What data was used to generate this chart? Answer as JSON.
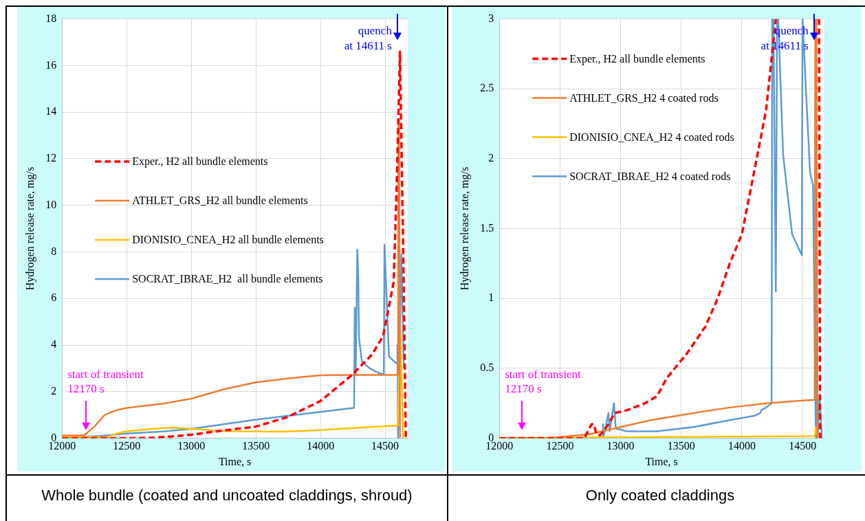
{
  "chart_data": [
    {
      "type": "line",
      "xlabel": "Time, s",
      "ylabel": "Hydrogen release rate, mg/s",
      "xlim": [
        12000,
        14675
      ],
      "xticks": [
        12000,
        12500,
        13000,
        13500,
        14000,
        14500
      ],
      "ylim": [
        0,
        18
      ],
      "yticks": [
        0,
        2,
        4,
        6,
        8,
        10,
        12,
        14,
        16,
        18
      ],
      "grid": true,
      "legend": "left",
      "annotations": [
        "start of transient\n12170 s",
        "quench\nat 14611 s",
        "Whole bundle (coated and uncoated claddings, shroud)"
      ],
      "series": [
        {
          "name": "Exper., H2 all bundle elements",
          "color": "#ff0000",
          "line_style": "dashed",
          "x": [
            12000,
            12200,
            12500,
            12700,
            12850,
            13000,
            13200,
            13500,
            13740,
            14000,
            14240,
            14400,
            14485,
            14566,
            14590,
            14615,
            14640,
            14660
          ],
          "values": [
            0,
            0,
            0,
            0.02,
            0.08,
            0.15,
            0.3,
            0.5,
            0.9,
            1.6,
            2.7,
            3.6,
            4.4,
            6.7,
            10.9,
            16.6,
            8,
            0
          ]
        },
        {
          "name": "ATHLET_GRS_H2 all bundle elements",
          "color": "#ed7d31",
          "x": [
            12000,
            12170,
            12250,
            12330,
            12420,
            12500,
            12800,
            13000,
            13250,
            13500,
            13800,
            14000,
            14300,
            14600,
            14603,
            14608,
            14615
          ],
          "values": [
            0.12,
            0.12,
            0.5,
            1.0,
            1.2,
            1.3,
            1.5,
            1.7,
            2.1,
            2.4,
            2.6,
            2.7,
            2.72,
            2.72,
            13.7,
            13.7,
            0
          ]
        },
        {
          "name": "DIONISIO_CNEA_H2 all bundle elements",
          "color": "#ffc000",
          "x": [
            12000,
            12350,
            12420,
            12500,
            12700,
            12850,
            13000,
            13300,
            13700,
            14000,
            14300,
            14600,
            14610,
            14618,
            14640
          ],
          "values": [
            0.05,
            0.05,
            0.2,
            0.3,
            0.4,
            0.45,
            0.4,
            0.3,
            0.28,
            0.35,
            0.45,
            0.55,
            4.6,
            4.6,
            0
          ]
        },
        {
          "name": "SOCRAT_IBRAE_H2  all bundle elements",
          "color": "#5b9bd5",
          "x": [
            12000,
            12300,
            12500,
            12800,
            13000,
            13250,
            13500,
            13800,
            14100,
            14260,
            14265,
            14272,
            14285,
            14292,
            14298,
            14320,
            14380,
            14450,
            14490,
            14495,
            14530,
            14590,
            14595,
            14600,
            14625,
            14645
          ],
          "values": [
            0.02,
            0.1,
            0.2,
            0.3,
            0.4,
            0.6,
            0.8,
            1.0,
            1.2,
            1.3,
            5.6,
            2.7,
            8.1,
            7.0,
            4.3,
            3.3,
            3.0,
            2.8,
            2.75,
            8.3,
            3.5,
            3.2,
            4.0,
            0,
            7.9,
            3
          ]
        }
      ]
    },
    {
      "type": "line",
      "xlabel": "Time, s",
      "ylabel": "Hydrogen release rate, mg/s",
      "xlim": [
        12000,
        14675
      ],
      "xticks": [
        12000,
        12500,
        13000,
        13500,
        14000,
        14500
      ],
      "ylim": [
        0,
        3
      ],
      "yticks": [
        0,
        0.5,
        1,
        1.5,
        2,
        2.5,
        3
      ],
      "grid": true,
      "legend": "top left",
      "annotations": [
        "start of transient\n12170 s",
        "quench\nat 14611 s",
        "Only coated claddings"
      ],
      "series": [
        {
          "name": "Exper., H2 all bundle elements",
          "color": "#ff0000",
          "line_style": "dashed",
          "x": [
            12000,
            12700,
            12760,
            12780,
            12800,
            12830,
            12900,
            12950,
            13050,
            13200,
            13300,
            13380,
            13550,
            13700,
            13800,
            13900,
            14000,
            14100,
            14200,
            14280,
            14450,
            14636,
            14645
          ],
          "values": [
            0,
            0,
            0.1,
            0.1,
            0.03,
            0.02,
            0.1,
            0.18,
            0.2,
            0.25,
            0.3,
            0.43,
            0.61,
            0.8,
            1.0,
            1.25,
            1.46,
            1.9,
            2.35,
            3,
            null,
            3,
            0
          ]
        },
        {
          "name": "ATHLET_GRS_H2 4 coated rods",
          "color": "#ed7d31",
          "x": [
            12000,
            12400,
            12750,
            13000,
            13250,
            13600,
            13900,
            14200,
            14500,
            14600,
            14605,
            14615,
            14622
          ],
          "values": [
            0,
            0,
            0.03,
            0.08,
            0.13,
            0.18,
            0.22,
            0.25,
            0.27,
            0.275,
            3,
            3,
            0
          ]
        },
        {
          "name": "DIONISIO_CNEA_H2 4 coated rods",
          "color": "#ffc000",
          "x": [
            12000,
            13500,
            14600,
            14610,
            14625
          ],
          "values": [
            0,
            0.01,
            0.015,
            0.08,
            0
          ]
        },
        {
          "name": "SOCRAT_IBRAE_H2 4 coated rods",
          "color": "#5b9bd5",
          "x": [
            12000,
            12850,
            12855,
            12862,
            12900,
            12910,
            12945,
            12960,
            13050,
            13300,
            13600,
            13900,
            14100,
            14150,
            14160,
            14200,
            14245,
            14250,
            14260,
            14280,
            14290,
            14300,
            14340,
            14414,
            14494,
            14500,
            14562,
            14587,
            14610,
            14615,
            14625,
            14640,
            14660
          ],
          "values": [
            0,
            0,
            0.1,
            0.02,
            0.18,
            0.05,
            0.25,
            0.07,
            0.05,
            0.05,
            0.08,
            0.13,
            0.16,
            0.18,
            0.2,
            0.22,
            0.25,
            3,
            3,
            1.05,
            3,
            3,
            2.03,
            1.46,
            1.31,
            3,
            1.9,
            1.81,
            0,
            1.8,
            0,
            0.3,
            0
          ]
        }
      ]
    }
  ]
}
